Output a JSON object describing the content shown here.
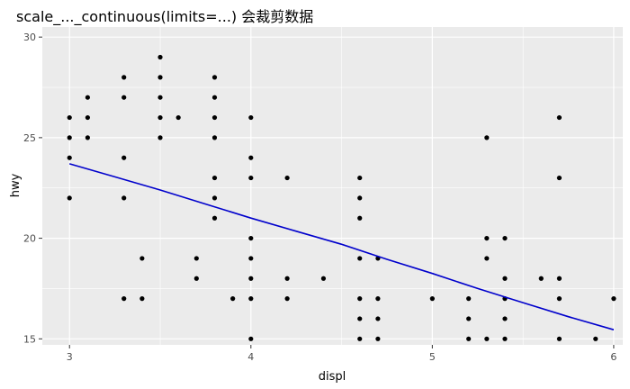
{
  "chart_data": {
    "type": "scatter",
    "title": "scale_..._continuous(limits=...) 会裁剪数据",
    "xlabel": "displ",
    "ylabel": "hwy",
    "xlim": [
      2.85,
      6.05
    ],
    "ylim": [
      14.7,
      30.5
    ],
    "x_ticks": [
      3,
      4,
      5,
      6
    ],
    "y_ticks": [
      15,
      20,
      25,
      30
    ],
    "x_tick_labels": [
      "3",
      "4",
      "5",
      "6"
    ],
    "y_tick_labels": [
      "15",
      "20",
      "25",
      "30"
    ],
    "grid": true,
    "background": "#ebebeb",
    "point_color": "#000000",
    "line_color": "#0000cc",
    "points": [
      [
        3.0,
        26
      ],
      [
        3.0,
        25
      ],
      [
        3.0,
        24
      ],
      [
        3.0,
        22
      ],
      [
        3.1,
        27
      ],
      [
        3.1,
        26
      ],
      [
        3.1,
        25
      ],
      [
        3.3,
        28
      ],
      [
        3.3,
        27
      ],
      [
        3.3,
        24
      ],
      [
        3.3,
        22
      ],
      [
        3.3,
        17
      ],
      [
        3.4,
        19
      ],
      [
        3.4,
        17
      ],
      [
        3.5,
        29
      ],
      [
        3.5,
        28
      ],
      [
        3.5,
        27
      ],
      [
        3.5,
        26
      ],
      [
        3.5,
        25
      ],
      [
        3.6,
        26
      ],
      [
        3.7,
        19
      ],
      [
        3.7,
        18
      ],
      [
        3.8,
        28
      ],
      [
        3.8,
        27
      ],
      [
        3.8,
        26
      ],
      [
        3.8,
        25
      ],
      [
        3.8,
        23
      ],
      [
        3.8,
        22
      ],
      [
        3.8,
        21
      ],
      [
        3.9,
        17
      ],
      [
        4.0,
        26
      ],
      [
        4.0,
        24
      ],
      [
        4.0,
        23
      ],
      [
        4.0,
        20
      ],
      [
        4.0,
        19
      ],
      [
        4.0,
        18
      ],
      [
        4.0,
        17
      ],
      [
        4.0,
        15
      ],
      [
        4.2,
        23
      ],
      [
        4.2,
        18
      ],
      [
        4.2,
        17
      ],
      [
        4.4,
        18
      ],
      [
        4.6,
        23
      ],
      [
        4.6,
        22
      ],
      [
        4.6,
        21
      ],
      [
        4.6,
        19
      ],
      [
        4.6,
        17
      ],
      [
        4.6,
        16
      ],
      [
        4.6,
        15
      ],
      [
        4.7,
        19
      ],
      [
        4.7,
        17
      ],
      [
        4.7,
        16
      ],
      [
        4.7,
        15
      ],
      [
        5.0,
        17
      ],
      [
        5.2,
        17
      ],
      [
        5.2,
        16
      ],
      [
        5.2,
        15
      ],
      [
        5.3,
        25
      ],
      [
        5.3,
        20
      ],
      [
        5.3,
        19
      ],
      [
        5.3,
        15
      ],
      [
        5.4,
        20
      ],
      [
        5.4,
        18
      ],
      [
        5.4,
        17
      ],
      [
        5.4,
        16
      ],
      [
        5.4,
        15
      ],
      [
        5.6,
        18
      ],
      [
        5.7,
        26
      ],
      [
        5.7,
        23
      ],
      [
        5.7,
        18
      ],
      [
        5.7,
        17
      ],
      [
        5.7,
        15
      ],
      [
        5.9,
        15
      ],
      [
        6.0,
        17
      ]
    ],
    "fit_line": {
      "x": [
        3.0,
        3.25,
        3.5,
        3.75,
        4.0,
        4.25,
        4.5,
        4.75,
        5.0,
        5.25,
        5.5,
        5.75,
        6.0
      ],
      "y": [
        23.7,
        23.05,
        22.4,
        21.7,
        21.0,
        20.35,
        19.7,
        18.95,
        18.25,
        17.5,
        16.8,
        16.1,
        15.45
      ]
    }
  }
}
